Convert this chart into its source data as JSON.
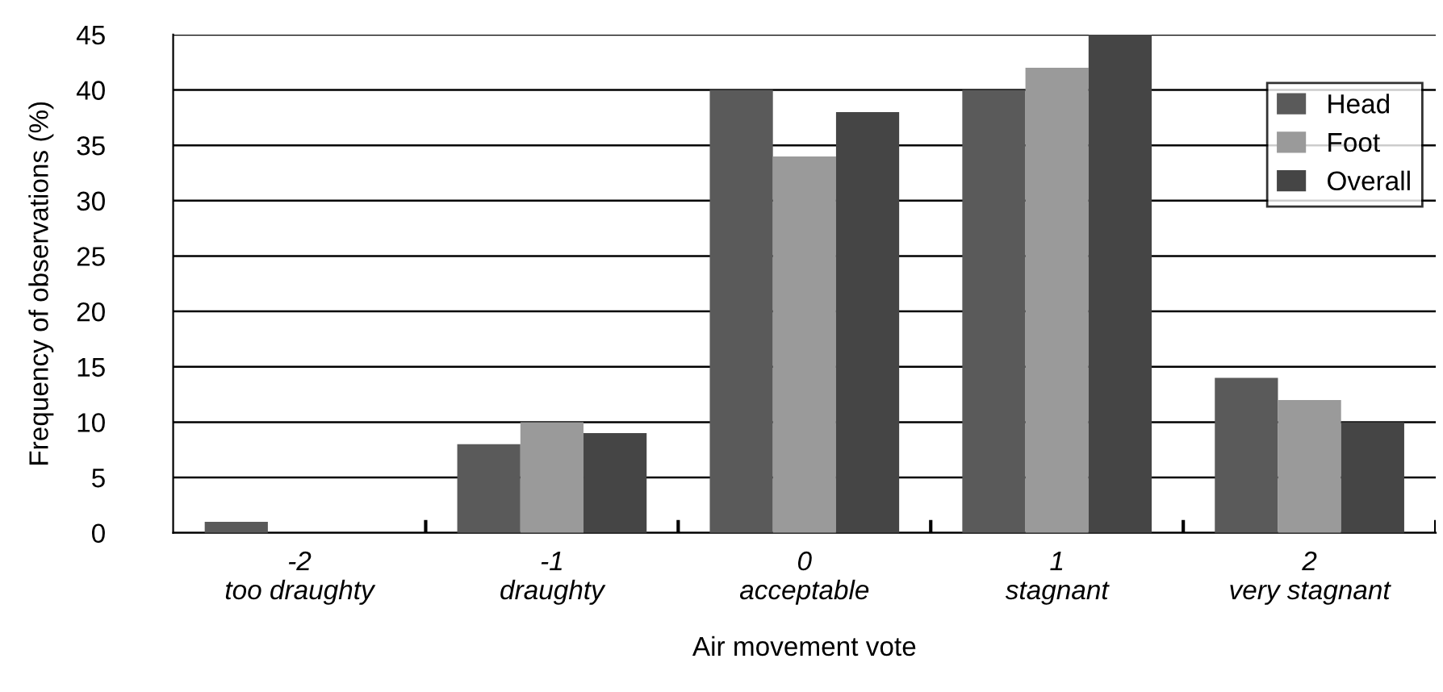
{
  "chart_data": {
    "type": "bar",
    "categories": [
      "-2\ntoo draughty",
      "-1\ndraughty",
      "0\nacceptable",
      "1\nstagnant",
      "2\nvery stagnant"
    ],
    "series": [
      {
        "name": "Head",
        "color": "#5a5a5a",
        "values": [
          1,
          8,
          40,
          40,
          14
        ]
      },
      {
        "name": "Foot",
        "color": "#9a9a9a",
        "values": [
          0,
          10,
          34,
          42,
          12
        ]
      },
      {
        "name": "Overall",
        "color": "#454545",
        "values": [
          0,
          9,
          38,
          45,
          10
        ]
      }
    ],
    "xlabel": "Air movement vote",
    "ylabel": "Frequency of observations (%)",
    "ylim": [
      0,
      45
    ],
    "yticks": [
      0,
      5,
      10,
      15,
      20,
      25,
      30,
      35,
      40,
      45
    ],
    "grid": "y",
    "legend": "top right"
  }
}
